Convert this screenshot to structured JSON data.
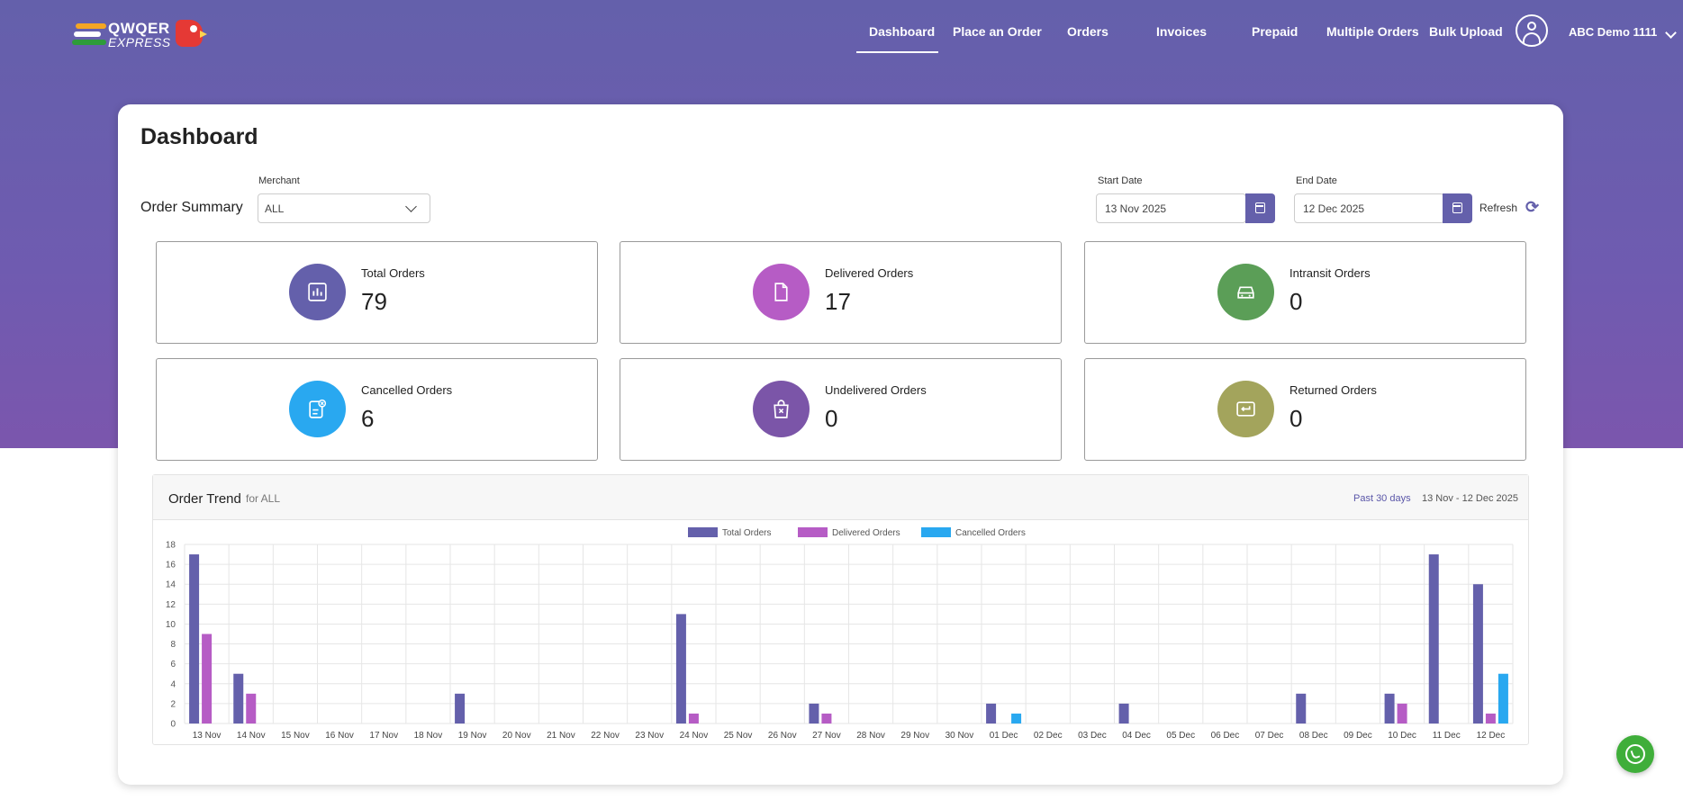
{
  "colors": {
    "brand": "#6460ab",
    "total": "#6460ab",
    "delivered": "#b65cc5",
    "cancelled": "#29a8f0",
    "intransit": "#5b9e57",
    "undelivered": "#7b55a8",
    "returned": "#a3a45c"
  },
  "logo": {
    "line1": "QWQER",
    "line2": "EXPRESS"
  },
  "nav": {
    "items": [
      "Dashboard",
      "Place an Order",
      "Orders",
      "Invoices",
      "Prepaid",
      "Multiple Orders",
      "Bulk Upload"
    ],
    "active": "Dashboard"
  },
  "user": {
    "name": "ABC Demo 1111",
    "icon": "user-circle-icon"
  },
  "page": {
    "title": "Dashboard"
  },
  "filters": {
    "section_label": "Order Summary",
    "merchant_label": "Merchant",
    "merchant_value": "ALL",
    "start_label": "Start Date",
    "start_value": "13 Nov 2025",
    "end_label": "End Date",
    "end_value": "12 Dec 2025",
    "refresh_label": "Refresh"
  },
  "stats": [
    {
      "label": "Total Orders",
      "value": "79",
      "icon": "chart-icon"
    },
    {
      "label": "Delivered Orders",
      "value": "17",
      "icon": "document-icon"
    },
    {
      "label": "Intransit Orders",
      "value": "0",
      "icon": "car-icon"
    },
    {
      "label": "Cancelled Orders",
      "value": "6",
      "icon": "cancelled-list-icon"
    },
    {
      "label": "Undelivered Orders",
      "value": "0",
      "icon": "bag-x-icon"
    },
    {
      "label": "Returned Orders",
      "value": "0",
      "icon": "return-icon"
    }
  ],
  "trend": {
    "title": "Order Trend",
    "subtitle": "for ALL",
    "range_label": "Past 30 days",
    "range_dates": "13 Nov - 12 Dec 2025"
  },
  "chart_data": {
    "type": "bar",
    "categories": [
      "13 Nov",
      "14 Nov",
      "15 Nov",
      "16 Nov",
      "17 Nov",
      "18 Nov",
      "19 Nov",
      "20 Nov",
      "21 Nov",
      "22 Nov",
      "23 Nov",
      "24 Nov",
      "25 Nov",
      "26 Nov",
      "27 Nov",
      "28 Nov",
      "29 Nov",
      "30 Nov",
      "01 Dec",
      "02 Dec",
      "03 Dec",
      "04 Dec",
      "05 Dec",
      "06 Dec",
      "07 Dec",
      "08 Dec",
      "09 Dec",
      "10 Dec",
      "11 Dec",
      "12 Dec"
    ],
    "series": [
      {
        "name": "Total Orders",
        "values": [
          17,
          5,
          0,
          0,
          0,
          0,
          3,
          0,
          0,
          0,
          0,
          11,
          0,
          0,
          2,
          0,
          0,
          0,
          2,
          0,
          0,
          2,
          0,
          0,
          0,
          3,
          0,
          3,
          17,
          14
        ]
      },
      {
        "name": "Delivered Orders",
        "values": [
          9,
          3,
          0,
          0,
          0,
          0,
          0,
          0,
          0,
          0,
          0,
          1,
          0,
          0,
          1,
          0,
          0,
          0,
          0,
          0,
          0,
          0,
          0,
          0,
          0,
          0,
          0,
          2,
          0,
          1
        ]
      },
      {
        "name": "Cancelled Orders",
        "values": [
          0,
          0,
          0,
          0,
          0,
          0,
          0,
          0,
          0,
          0,
          0,
          0,
          0,
          0,
          0,
          0,
          0,
          0,
          1,
          0,
          0,
          0,
          0,
          0,
          0,
          0,
          0,
          0,
          0,
          5
        ]
      }
    ],
    "ylim": [
      0,
      18
    ],
    "yticks": [
      0,
      2,
      4,
      6,
      8,
      10,
      12,
      14,
      16,
      18
    ],
    "grid": true,
    "legend": "top-center"
  }
}
